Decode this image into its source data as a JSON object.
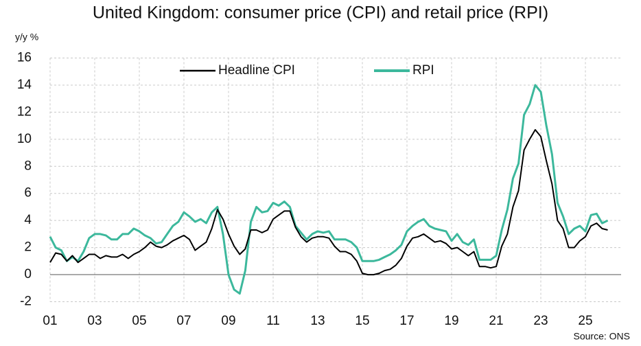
{
  "chart_data": {
    "type": "line",
    "title": "United Kingdom: consumer price (CPI) and retail price (RPI)",
    "y_axis_label": "y/y %",
    "source": "Source: ONS",
    "x": [
      2001,
      2001.25,
      2001.5,
      2001.75,
      2002,
      2002.25,
      2002.5,
      2002.75,
      2003,
      2003.25,
      2003.5,
      2003.75,
      2004,
      2004.25,
      2004.5,
      2004.75,
      2005,
      2005.25,
      2005.5,
      2005.75,
      2006,
      2006.25,
      2006.5,
      2006.75,
      2007,
      2007.25,
      2007.5,
      2007.75,
      2008,
      2008.25,
      2008.5,
      2008.75,
      2009,
      2009.25,
      2009.5,
      2009.75,
      2010,
      2010.25,
      2010.5,
      2010.75,
      2011,
      2011.25,
      2011.5,
      2011.75,
      2012,
      2012.25,
      2012.5,
      2012.75,
      2013,
      2013.25,
      2013.5,
      2013.75,
      2014,
      2014.25,
      2014.5,
      2014.75,
      2015,
      2015.25,
      2015.5,
      2015.75,
      2016,
      2016.25,
      2016.5,
      2016.75,
      2017,
      2017.25,
      2017.5,
      2017.75,
      2018,
      2018.25,
      2018.5,
      2018.75,
      2019,
      2019.25,
      2019.5,
      2019.75,
      2020,
      2020.25,
      2020.5,
      2020.75,
      2021,
      2021.25,
      2021.5,
      2021.75,
      2022,
      2022.25,
      2022.5,
      2022.75,
      2023,
      2023.25,
      2023.5,
      2023.75,
      2024,
      2024.25,
      2024.5,
      2024.75,
      2025,
      2025.25,
      2025.5,
      2025.75,
      2026
    ],
    "series": [
      {
        "name": "Headline CPI",
        "color": "#000000",
        "values": [
          0.9,
          1.6,
          1.5,
          1.0,
          1.4,
          0.9,
          1.2,
          1.5,
          1.5,
          1.2,
          1.4,
          1.3,
          1.3,
          1.5,
          1.2,
          1.5,
          1.7,
          2.0,
          2.4,
          2.1,
          2.0,
          2.2,
          2.5,
          2.7,
          2.9,
          2.6,
          1.8,
          2.1,
          2.4,
          3.4,
          4.8,
          4.1,
          3.0,
          2.1,
          1.5,
          1.9,
          3.3,
          3.3,
          3.1,
          3.3,
          4.1,
          4.4,
          4.7,
          4.7,
          3.5,
          2.8,
          2.4,
          2.7,
          2.8,
          2.8,
          2.7,
          2.1,
          1.7,
          1.7,
          1.5,
          1.0,
          0.1,
          0.0,
          0.0,
          0.1,
          0.3,
          0.4,
          0.7,
          1.2,
          2.1,
          2.7,
          2.8,
          3.0,
          2.7,
          2.4,
          2.5,
          2.3,
          1.9,
          2.0,
          1.7,
          1.4,
          1.7,
          0.6,
          0.6,
          0.5,
          0.6,
          2.1,
          3.0,
          5.0,
          6.2,
          9.2,
          10.0,
          10.7,
          10.2,
          8.4,
          6.7,
          4.0,
          3.4,
          2.0,
          2.0,
          2.5,
          2.8,
          3.6,
          3.8,
          3.4,
          3.3
        ]
      },
      {
        "name": "RPI",
        "color": "#3cb89c",
        "values": [
          2.8,
          2.0,
          1.8,
          1.0,
          1.3,
          1.0,
          1.7,
          2.7,
          3.0,
          3.0,
          2.9,
          2.6,
          2.6,
          3.0,
          3.0,
          3.4,
          3.2,
          2.9,
          2.7,
          2.3,
          2.4,
          3.0,
          3.6,
          3.9,
          4.6,
          4.3,
          3.9,
          4.1,
          3.8,
          4.6,
          5.0,
          3.0,
          0.0,
          -1.1,
          -1.4,
          0.3,
          3.9,
          5.0,
          4.6,
          4.7,
          5.3,
          5.1,
          5.4,
          5.0,
          3.6,
          3.1,
          2.6,
          3.0,
          3.2,
          3.1,
          3.2,
          2.6,
          2.6,
          2.6,
          2.4,
          2.0,
          1.0,
          1.0,
          1.0,
          1.1,
          1.3,
          1.5,
          1.8,
          2.2,
          3.2,
          3.6,
          3.9,
          4.1,
          3.6,
          3.4,
          3.3,
          3.2,
          2.5,
          3.0,
          2.4,
          2.2,
          2.6,
          1.1,
          1.1,
          1.1,
          1.4,
          3.3,
          4.8,
          7.1,
          8.2,
          11.8,
          12.6,
          14.0,
          13.5,
          11.0,
          8.9,
          5.3,
          4.3,
          3.0,
          3.4,
          3.6,
          3.2,
          4.4,
          4.5,
          3.8,
          4.0
        ]
      }
    ],
    "xlim": [
      2001,
      2026.6
    ],
    "xticks": [
      {
        "value": 2001,
        "label": "01"
      },
      {
        "value": 2003,
        "label": "03"
      },
      {
        "value": 2005,
        "label": "05"
      },
      {
        "value": 2007,
        "label": "07"
      },
      {
        "value": 2009,
        "label": "09"
      },
      {
        "value": 2011,
        "label": "11"
      },
      {
        "value": 2013,
        "label": "13"
      },
      {
        "value": 2015,
        "label": "15"
      },
      {
        "value": 2017,
        "label": "17"
      },
      {
        "value": 2019,
        "label": "19"
      },
      {
        "value": 2021,
        "label": "21"
      },
      {
        "value": 2023,
        "label": "23"
      },
      {
        "value": 2025,
        "label": "25"
      }
    ],
    "ylim": [
      -2,
      16
    ],
    "yticks": [
      -2,
      0,
      2,
      4,
      6,
      8,
      10,
      12,
      14,
      16
    ],
    "grid": true,
    "legend": "top",
    "negative_tick_color": "#e0201b"
  }
}
